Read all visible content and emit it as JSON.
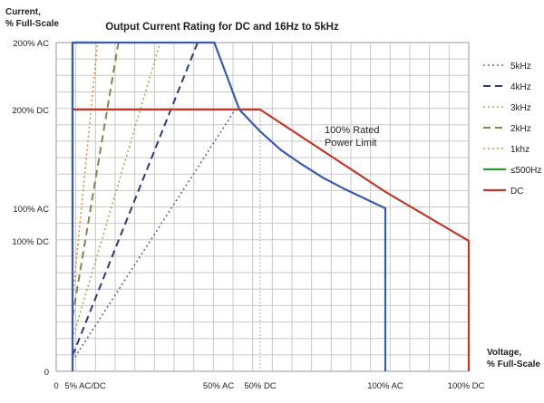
{
  "chart_data": {
    "type": "line",
    "title": "Output Current Rating for DC and 16Hz to 5kHz",
    "ylabel_line1": "Current,",
    "ylabel_line2": "% Full-Scale",
    "xlabel_line1": "Voltage,",
    "xlabel_line2": "% Full-Scale",
    "annotation_line1": "100% Rated",
    "annotation_line2": "Power Limit",
    "grid": true,
    "legend_position": "right",
    "y_ticks": [
      {
        "label": "0",
        "value": 0
      },
      {
        "label": "100% DC",
        "value": 1.0
      },
      {
        "label": "100% AC",
        "value": 1.1
      },
      {
        "label": "200% DC",
        "value": 2.0
      },
      {
        "label": "200% AC",
        "value": 2.2
      }
    ],
    "x_ticks": [
      {
        "label": "0",
        "value": -0.04,
        "anchor": "middle"
      },
      {
        "label": "5% AC/DC",
        "value": 0.05,
        "anchor": "middle"
      },
      {
        "label": "50% AC",
        "value": 0.4,
        "anchor": "middle"
      },
      {
        "label": "50% DC",
        "value": 0.5,
        "anchor": "middle"
      },
      {
        "label": "100% AC",
        "value": 0.8,
        "anchor": "middle"
      },
      {
        "label": "100% DC",
        "value": 1.0,
        "anchor": "middle"
      }
    ],
    "xlim": [
      0,
      1.0
    ],
    "ylim": [
      0,
      2.2
    ],
    "series": [
      {
        "name": "5kHz",
        "color": "#5a6a9c",
        "dash": "2,3",
        "width": 1.6,
        "points": [
          [
            0.05,
            0.08
          ],
          [
            0.44,
            2.0
          ]
        ]
      },
      {
        "name": "4kHz",
        "color": "#2b3a78",
        "dash": "8,5",
        "width": 2,
        "points": [
          [
            0.05,
            0.12
          ],
          [
            0.35,
            2.2
          ]
        ]
      },
      {
        "name": "3kHz",
        "color": "#9aae5a",
        "dash": "2,3",
        "width": 1.6,
        "points": [
          [
            0.05,
            0.25
          ],
          [
            0.26,
            2.2
          ]
        ]
      },
      {
        "name": "2kHz",
        "color": "#7d8a4a",
        "dash": "8,5",
        "width": 2,
        "points": [
          [
            0.05,
            0.42
          ],
          [
            0.16,
            2.2
          ]
        ]
      },
      {
        "name": "1khz",
        "color": "#e08a3a",
        "dash": "2,3",
        "width": 1.6,
        "points": [
          [
            0.05,
            0.55
          ],
          [
            0.11,
            2.2
          ]
        ]
      },
      {
        "name": "≤500Hz",
        "color": "#2e9a3a",
        "dash": "",
        "width": 2.2,
        "points": [
          [
            0.05,
            1.45
          ],
          [
            0.05,
            2.2
          ],
          [
            0.11,
            2.2
          ]
        ]
      },
      {
        "name": "DC",
        "color": "#c0392b",
        "dash": "",
        "width": 2.2,
        "points": [
          [
            0.05,
            2.0
          ],
          [
            0.5,
            2.0
          ],
          [
            0.8,
            1.25
          ],
          [
            1.0,
            1.0
          ],
          [
            1.0,
            0.0
          ]
        ]
      }
    ],
    "ac_limit": {
      "color": "#3a5ba8",
      "points": [
        [
          0.05,
          0.0
        ],
        [
          0.05,
          2.2
        ],
        [
          0.39,
          2.2
        ],
        [
          0.45,
          2.0
        ],
        [
          0.5,
          1.8
        ],
        [
          0.55,
          1.63
        ],
        [
          0.6,
          1.5
        ],
        [
          0.65,
          1.38
        ],
        [
          0.7,
          1.28
        ],
        [
          0.75,
          1.19
        ],
        [
          0.8,
          1.1
        ],
        [
          0.8,
          0.0
        ]
      ]
    }
  }
}
